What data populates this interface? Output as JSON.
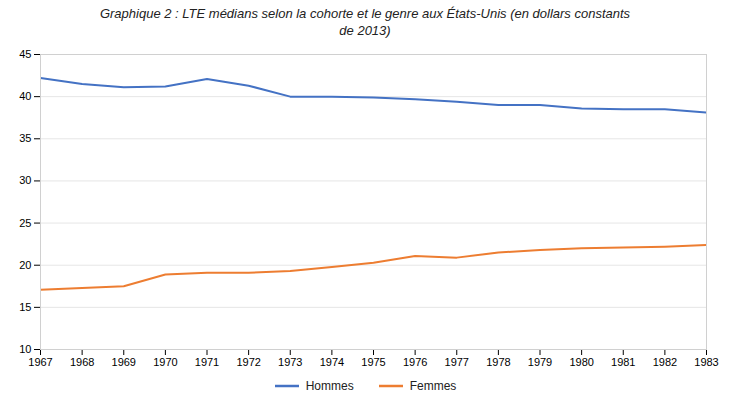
{
  "chart_data": {
    "type": "line",
    "title": "Graphique 2 : LTE médians selon la cohorte et le genre aux États-Unis (en dollars constants\nde 2013)",
    "x": [
      1967,
      1968,
      1969,
      1970,
      1971,
      1972,
      1973,
      1974,
      1975,
      1976,
      1977,
      1978,
      1979,
      1980,
      1981,
      1982,
      1983
    ],
    "series": [
      {
        "name": "Hommes",
        "color": "#4472C4",
        "values": [
          42.2,
          41.5,
          41.1,
          41.2,
          42.1,
          41.3,
          40.0,
          40.0,
          39.9,
          39.7,
          39.4,
          39.0,
          39.0,
          38.6,
          38.5,
          38.5,
          38.1
        ]
      },
      {
        "name": "Femmes",
        "color": "#ED7D31",
        "values": [
          17.1,
          17.3,
          17.5,
          18.9,
          19.1,
          19.1,
          19.3,
          19.8,
          20.3,
          21.1,
          20.9,
          21.5,
          21.8,
          22.0,
          22.1,
          22.2,
          22.4
        ]
      }
    ],
    "xlim": [
      1967,
      1983
    ],
    "xticks": [
      1967,
      1968,
      1969,
      1970,
      1971,
      1972,
      1973,
      1974,
      1975,
      1976,
      1977,
      1978,
      1979,
      1980,
      1981,
      1982,
      1983
    ],
    "ylim": [
      10,
      45
    ],
    "yticks": [
      10,
      15,
      20,
      25,
      30,
      35,
      40,
      45
    ],
    "grid": true,
    "legend": "bottom"
  }
}
